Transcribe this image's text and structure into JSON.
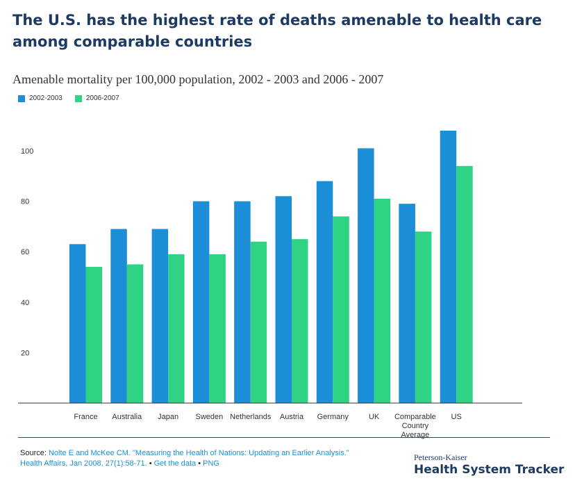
{
  "header": {
    "headline": "The U.S. has the highest rate of deaths amenable to health care among comparable countries"
  },
  "source": {
    "prefix": "Source: ",
    "citation_line1": "Nolte E and McKee CM. \"Measuring the Health of Nations: Updating an Earlier Analysis.\"",
    "citation_line2": "Health Affairs, Jan 2008, 27(1):58-71.",
    "sep1": " • ",
    "get_data": "Get the data",
    "sep2": " • ",
    "png": "PNG"
  },
  "logo": {
    "top": "Peterson-Kaiser",
    "main": "Health System Tracker"
  },
  "colors": {
    "series1": "#1b8ed7",
    "series2": "#2fd383",
    "headline": "#1d3b62"
  },
  "chart_data": {
    "type": "bar",
    "title": "Amenable mortality per 100,000 population, 2002 - 2003 and 2006 - 2007",
    "categories": [
      "France",
      "Australia",
      "Japan",
      "Sweden",
      "Netherlands",
      "Austria",
      "Germany",
      "UK",
      "Comparable Country Average",
      "US"
    ],
    "series": [
      {
        "name": "2002-2003",
        "values": [
          63,
          69,
          69,
          80,
          80,
          82,
          88,
          101,
          79,
          108
        ]
      },
      {
        "name": "2006-2007",
        "values": [
          54,
          55,
          59,
          59,
          64,
          65,
          74,
          81,
          68,
          94
        ]
      }
    ],
    "yticks": [
      20,
      40,
      60,
      80,
      100
    ],
    "ylim": [
      0,
      110
    ],
    "xlabel": "",
    "ylabel": "",
    "grid": false,
    "legend": "top-left"
  }
}
